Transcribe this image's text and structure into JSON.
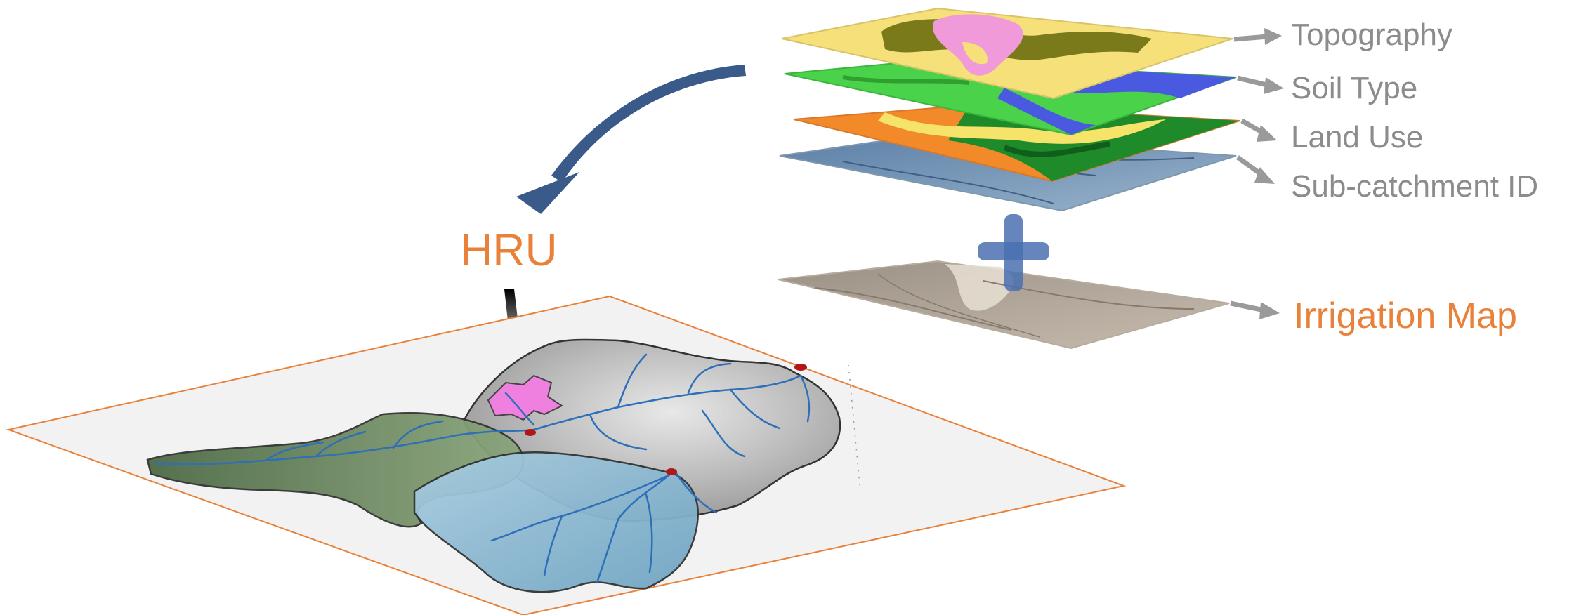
{
  "layers": [
    {
      "id": "topography",
      "label": "Topography"
    },
    {
      "id": "soil",
      "label": "Soil Type"
    },
    {
      "id": "landuse",
      "label": "Land Use"
    },
    {
      "id": "subcatchment",
      "label": "Sub-catchment ID"
    }
  ],
  "irrigation": {
    "label": "Irrigation Map"
  },
  "hru": {
    "label": "HRU"
  },
  "colors": {
    "label_gray": "#8c8c8c",
    "accent_orange": "#e8823a",
    "arrow_blue": "#3a5a8a",
    "arrow_gray": "#9a9a9a",
    "plus_blue": "#4a70b0"
  }
}
